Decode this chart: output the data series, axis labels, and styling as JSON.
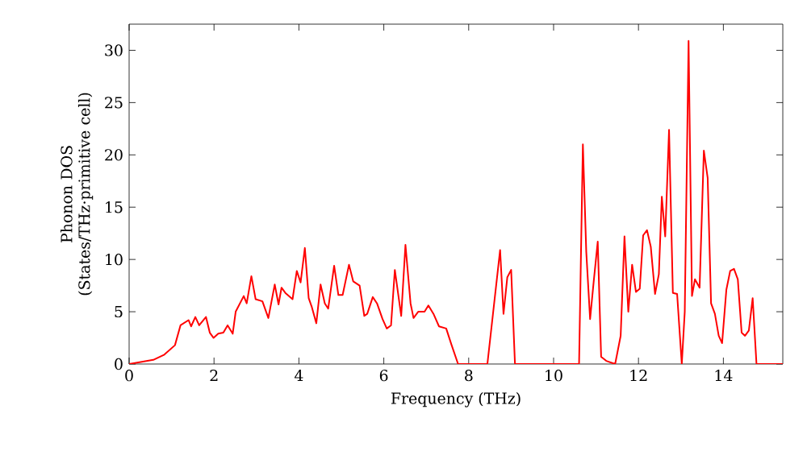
{
  "chart_data": {
    "type": "line",
    "xlabel": "Frequency (THz)",
    "ylabel": "Phonon DOS (States/THz·primitive cell)",
    "xlim": [
      0,
      15.4
    ],
    "ylim": [
      0,
      32.5
    ],
    "xticks": [
      0,
      2,
      4,
      6,
      8,
      10,
      12,
      14
    ],
    "yticks": [
      0,
      5,
      10,
      15,
      20,
      25,
      30
    ],
    "marker": "none",
    "line_style": "solid",
    "series": [
      {
        "color": "#ff0000",
        "x": [
          0,
          0.57,
          0.83,
          1.08,
          1.21,
          1.4,
          1.46,
          1.56,
          1.65,
          1.81,
          1.9,
          1.99,
          2.1,
          2.22,
          2.32,
          2.44,
          2.51,
          2.7,
          2.77,
          2.88,
          2.98,
          3.14,
          3.28,
          3.43,
          3.52,
          3.59,
          3.68,
          3.85,
          3.95,
          4.04,
          4.14,
          4.23,
          4.3,
          4.41,
          4.51,
          4.61,
          4.69,
          4.83,
          4.93,
          5.03,
          5.18,
          5.28,
          5.43,
          5.54,
          5.61,
          5.74,
          5.84,
          5.97,
          6.07,
          6.17,
          6.26,
          6.41,
          6.51,
          6.63,
          6.7,
          6.81,
          6.96,
          7.05,
          7.17,
          7.3,
          7.47,
          7.59,
          7.75,
          8.44,
          8.74,
          8.82,
          8.91,
          9.0,
          9.09,
          10.6,
          10.69,
          10.77,
          10.86,
          10.95,
          11.04,
          11.12,
          11.24,
          11.45,
          11.58,
          11.67,
          11.76,
          11.85,
          11.94,
          12.03,
          12.11,
          12.2,
          12.29,
          12.39,
          12.48,
          12.55,
          12.63,
          12.72,
          12.81,
          12.91,
          13.02,
          13.09,
          13.18,
          13.26,
          13.33,
          13.44,
          13.54,
          13.63,
          13.71,
          13.8,
          13.89,
          13.97,
          14.07,
          14.16,
          14.25,
          14.34,
          14.43,
          14.51,
          14.6,
          14.69,
          14.78,
          15.4
        ],
        "values": [
          0,
          0.4,
          0.9,
          1.8,
          3.7,
          4.2,
          3.6,
          4.5,
          3.7,
          4.5,
          3.0,
          2.5,
          2.9,
          3.0,
          3.7,
          2.9,
          5.0,
          6.5,
          5.8,
          8.4,
          6.2,
          6.0,
          4.4,
          7.6,
          5.7,
          7.3,
          6.8,
          6.2,
          8.9,
          7.8,
          11.1,
          6.3,
          5.5,
          3.9,
          7.6,
          5.8,
          5.3,
          9.4,
          6.6,
          6.6,
          9.5,
          7.9,
          7.5,
          4.6,
          4.8,
          6.4,
          5.8,
          4.3,
          3.4,
          3.7,
          9.0,
          4.6,
          11.4,
          5.8,
          4.4,
          5.0,
          5.0,
          5.6,
          4.8,
          3.6,
          3.4,
          1.9,
          0,
          0,
          10.9,
          4.8,
          8.3,
          9.0,
          0,
          0,
          21.0,
          10.7,
          4.3,
          8.1,
          11.7,
          0.7,
          0.3,
          0,
          2.7,
          12.2,
          5.0,
          9.5,
          6.9,
          7.2,
          12.3,
          12.8,
          11.2,
          6.7,
          8.6,
          16.0,
          12.2,
          22.4,
          6.8,
          6.7,
          0,
          5.0,
          30.9,
          6.5,
          8.1,
          7.3,
          20.4,
          17.8,
          5.8,
          4.8,
          2.7,
          2.0,
          7.1,
          8.9,
          9.1,
          8.1,
          3.0,
          2.7,
          3.2,
          6.3,
          0,
          0
        ]
      }
    ]
  }
}
